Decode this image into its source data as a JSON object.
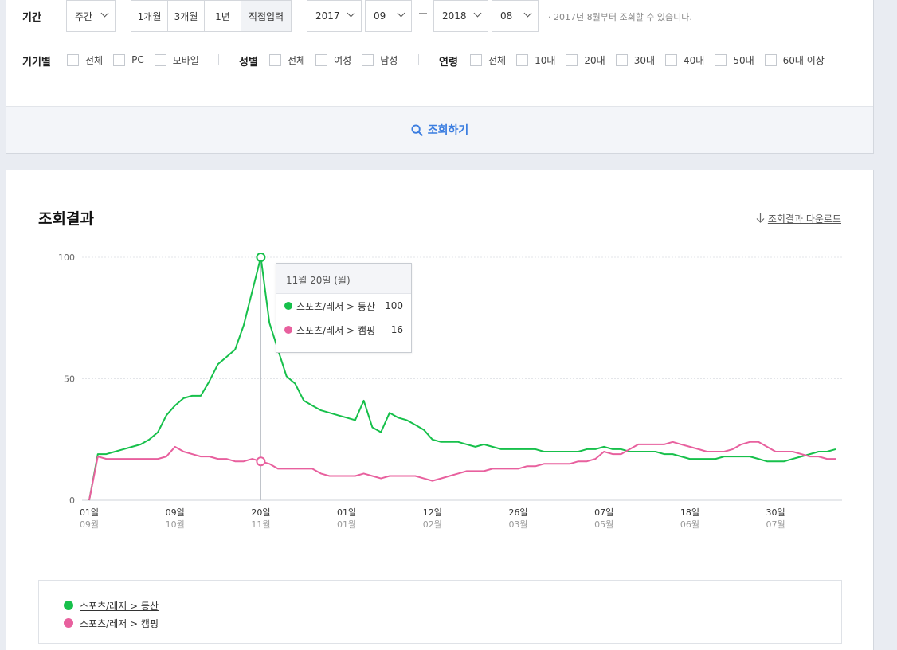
{
  "filters": {
    "period_label": "기간",
    "period_unit": "주간",
    "quick_ranges": [
      "1개월",
      "3개월",
      "1년",
      "직접입력"
    ],
    "start_year": "2017",
    "start_month": "09",
    "end_year": "2018",
    "end_month": "08",
    "range_note": "· 2017년 8월부터 조회할 수 있습니다.",
    "device": {
      "label": "기기별",
      "options": [
        "전체",
        "PC",
        "모바일"
      ]
    },
    "gender": {
      "label": "성별",
      "options": [
        "전체",
        "여성",
        "남성"
      ]
    },
    "age": {
      "label": "연령",
      "options": [
        "전체",
        "10대",
        "20대",
        "30대",
        "40대",
        "50대",
        "60대 이상"
      ]
    },
    "search_button": "조회하기"
  },
  "result": {
    "title": "조회결과",
    "download": "조회결과 다운로드",
    "tooltip": {
      "date": "11월 20일 (월)",
      "rows": [
        {
          "name": "스포츠/레저 > 등산",
          "value": "100"
        },
        {
          "name": "스포츠/레저 > 캠핑",
          "value": "16"
        }
      ]
    },
    "legend": [
      "스포츠/레저 > 등산",
      "스포츠/레저 > 캠핑"
    ]
  },
  "colors": {
    "accent": "#3b7de0",
    "series1": "#17c04b",
    "series2": "#e8609e"
  },
  "chart_data": {
    "type": "line",
    "ylim": [
      0,
      100
    ],
    "yticks": [
      0,
      50,
      100
    ],
    "grid": true,
    "legend_position": "bottom",
    "x_ticks": [
      {
        "day": "01일",
        "month": "09월",
        "index": 0
      },
      {
        "day": "09일",
        "month": "10월",
        "index": 10
      },
      {
        "day": "20일",
        "month": "11월",
        "index": 20
      },
      {
        "day": "01일",
        "month": "01월",
        "index": 30
      },
      {
        "day": "12일",
        "month": "02월",
        "index": 40
      },
      {
        "day": "26일",
        "month": "03월",
        "index": 50
      },
      {
        "day": "07일",
        "month": "05월",
        "index": 60
      },
      {
        "day": "18일",
        "month": "06월",
        "index": 70
      },
      {
        "day": "30일",
        "month": "07월",
        "index": 80
      }
    ],
    "point_count": 88,
    "highlight_index": 20,
    "series": [
      {
        "name": "스포츠/레저 > 등산",
        "values": [
          0,
          19,
          19,
          20,
          21,
          22,
          23,
          25,
          28,
          35,
          39,
          42,
          43,
          43,
          49,
          56,
          59,
          62,
          72,
          86,
          100,
          73,
          62,
          51,
          48,
          41,
          39,
          37,
          36,
          35,
          34,
          33,
          41,
          30,
          28,
          36,
          34,
          33,
          31,
          29,
          25,
          24,
          24,
          24,
          23,
          22,
          23,
          22,
          21,
          21,
          21,
          21,
          21,
          20,
          20,
          20,
          20,
          20,
          21,
          21,
          22,
          21,
          21,
          20,
          20,
          20,
          20,
          19,
          19,
          18,
          17,
          17,
          17,
          17,
          18,
          18,
          18,
          18,
          17,
          16,
          16,
          16,
          17,
          18,
          19,
          20,
          20,
          21
        ]
      },
      {
        "name": "스포츠/레저 > 캠핑",
        "values": [
          0,
          18,
          17,
          17,
          17,
          17,
          17,
          17,
          17,
          18,
          22,
          20,
          19,
          18,
          18,
          17,
          17,
          16,
          16,
          17,
          16,
          15,
          13,
          13,
          13,
          13,
          13,
          11,
          10,
          10,
          10,
          10,
          11,
          10,
          9,
          10,
          10,
          10,
          10,
          9,
          8,
          9,
          10,
          11,
          12,
          12,
          12,
          13,
          13,
          13,
          13,
          14,
          14,
          15,
          15,
          15,
          15,
          16,
          16,
          17,
          20,
          19,
          19,
          21,
          23,
          23,
          23,
          23,
          24,
          23,
          22,
          21,
          20,
          20,
          20,
          21,
          23,
          24,
          24,
          22,
          20,
          20,
          20,
          19,
          18,
          18,
          17,
          17
        ]
      }
    ]
  }
}
